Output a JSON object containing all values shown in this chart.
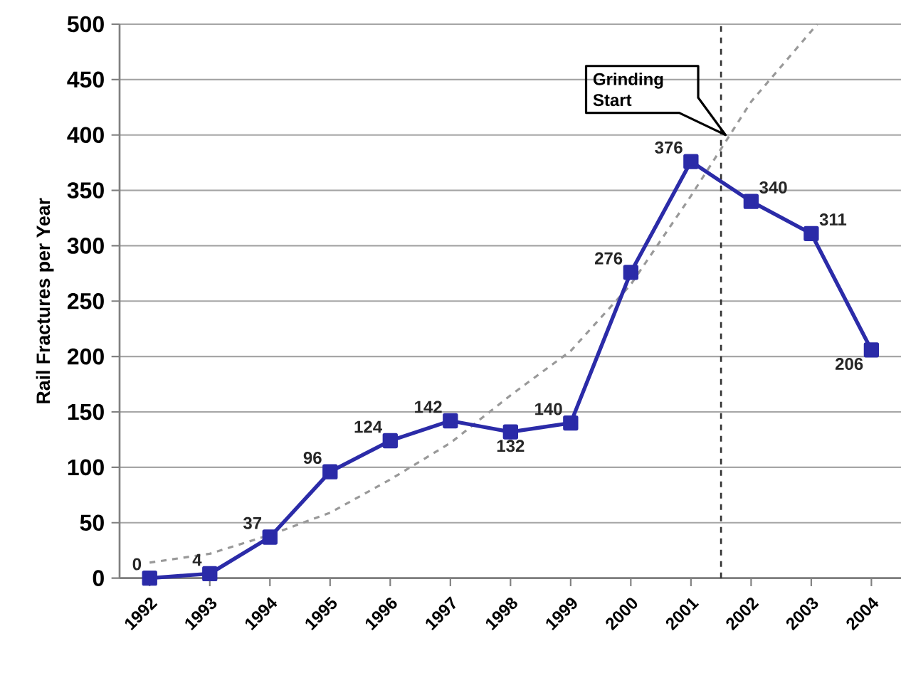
{
  "chart_data": {
    "type": "line",
    "ylabel": "Rail Fractures per Year",
    "series": [
      {
        "color": "#2b2ba8",
        "marker": "square",
        "line_style": "solid",
        "x": [
          1992,
          1993,
          1994,
          1995,
          1996,
          1997,
          1998,
          1999,
          2000,
          2001,
          2002,
          2003,
          2004
        ],
        "values": [
          0,
          4,
          37,
          96,
          124,
          142,
          132,
          140,
          276,
          376,
          340,
          311,
          206
        ],
        "value_labels": [
          "0",
          "4",
          "37",
          "96",
          "124",
          "142",
          "132",
          "140",
          "276",
          "376",
          "340",
          "311",
          "206"
        ]
      },
      {
        "color": "#999999",
        "marker": "none",
        "line_style": "dashed",
        "x": [
          1992,
          1993,
          1994,
          1995,
          1996,
          1997,
          1998,
          1999,
          2000,
          2001,
          2002,
          2003.1
        ],
        "values": [
          14,
          22,
          39,
          59,
          89,
          122,
          165,
          205,
          265,
          345,
          430,
          500
        ]
      }
    ],
    "xlim": [
      1991.5,
      2004.5
    ],
    "xticks": [
      1992,
      1993,
      1994,
      1995,
      1996,
      1997,
      1998,
      1999,
      2000,
      2001,
      2002,
      2003,
      2004
    ],
    "ylim": [
      0,
      500
    ],
    "yticks": [
      0,
      50,
      100,
      150,
      200,
      250,
      300,
      350,
      400,
      450,
      500
    ],
    "grid": "y",
    "ref_lines": [
      {
        "axis": "x",
        "value": 2001.5,
        "color": "#333333",
        "line_style": "dashed"
      }
    ],
    "annotations": [
      "Grinding Start"
    ]
  }
}
